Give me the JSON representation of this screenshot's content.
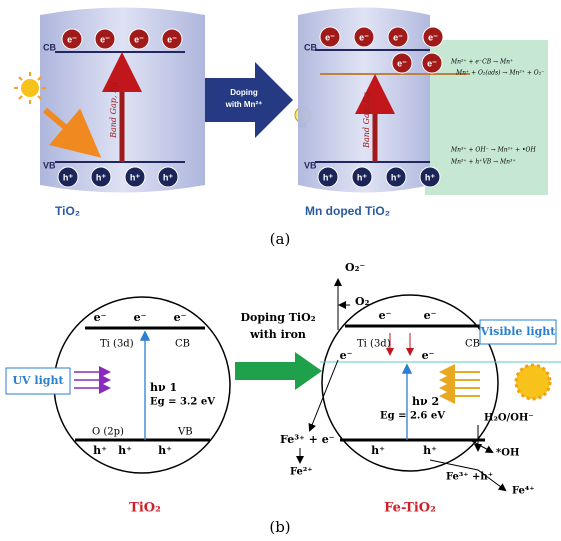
{
  "panel_a": {
    "left": {
      "cb": "CB",
      "vb": "VB",
      "electrons": [
        "e⁻",
        "e⁻",
        "e⁻",
        "e⁻"
      ],
      "holes": [
        "h⁺",
        "h⁺",
        "h⁺",
        "h⁺"
      ],
      "band_gap": "Band Gap, Eg",
      "label": "TiO₂"
    },
    "arrow": [
      "Doping",
      "with Mn²⁺"
    ],
    "right": {
      "cb": "CB",
      "vb": "VB",
      "electrons": [
        "e⁻",
        "e⁻",
        "e⁻",
        "e⁻"
      ],
      "trapped_electrons": [
        "e⁻",
        "e⁻"
      ],
      "holes": [
        "h⁺",
        "h⁺",
        "h⁺",
        "h⁺"
      ],
      "band_gap": "Band Gap, Eg",
      "label": "Mn doped TiO₂",
      "equations": [
        "Mn²⁺ + e⁻CB → Mn⁺",
        "Mn⁺ + O₂(ads) → Mn²⁺ + O₂⁻",
        "Mn³⁺ + OH⁻ → Mn²⁺ + •OH",
        "Mn²⁺ + h⁺VB → Mn³⁺"
      ]
    },
    "caption": "(a)"
  },
  "panel_b": {
    "arrow": [
      "Doping TiO₂",
      "with iron"
    ],
    "left": {
      "electrons": [
        "e⁻",
        "e⁻",
        "e⁻"
      ],
      "ti": "Ti (3d)",
      "cb": "CB",
      "uv": "UV light",
      "hv": "hν 1",
      "eg": "Eg = 3.2 eV",
      "o": "O (2p)",
      "vb": "VB",
      "holes": [
        "h⁺",
        "h⁺",
        "h⁺"
      ],
      "label": "TiO₂"
    },
    "right": {
      "o2minus": "O₂⁻",
      "o2": "O₂",
      "electrons": [
        "e⁻",
        "e⁻"
      ],
      "ti": "Ti (3d)",
      "cb": "CB",
      "trapped_electrons": [
        "e⁻",
        "e⁻"
      ],
      "visible": "Visible light",
      "hv": "hν 2",
      "eg": "Eg = 2.6 eV",
      "holes": [
        "h⁺",
        "h⁺"
      ],
      "fe3e": "Fe³⁺ + e⁻",
      "fe2": "Fe²⁺",
      "h2o": "H₂O/OH⁻",
      "oh": "*OH",
      "fe3h": "Fe³⁺ +h⁺",
      "fe4": "Fe⁴⁺",
      "label": "Fe-TiO₂"
    },
    "caption": "(b)"
  }
}
